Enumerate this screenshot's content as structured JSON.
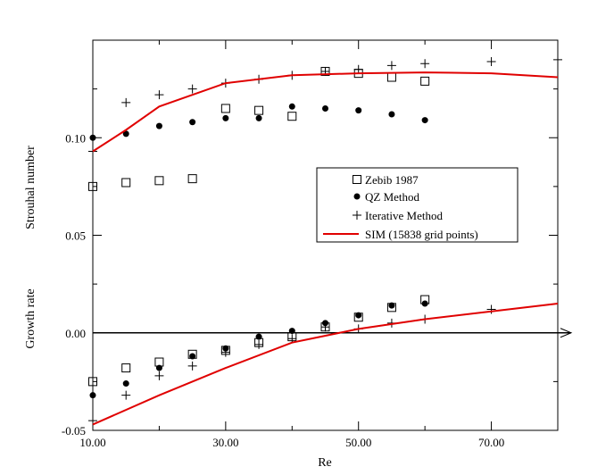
{
  "chart_data": {
    "type": "scatter",
    "xlabel": "Re",
    "ylabel_upper": "Strouhal number",
    "ylabel_lower": "Growth rate",
    "xlim": [
      10,
      80
    ],
    "ylim": [
      -0.05,
      0.15
    ],
    "x_ticks": [
      {
        "value": 10,
        "label": "10.00"
      },
      {
        "value": 30,
        "label": "30.00"
      },
      {
        "value": 50,
        "label": "50.00"
      },
      {
        "value": 70,
        "label": "70.00"
      }
    ],
    "y_ticks": [
      {
        "value": -0.05,
        "label": "-0.05"
      },
      {
        "value": 0.0,
        "label": "0.00"
      },
      {
        "value": 0.05,
        "label": "0.05"
      },
      {
        "value": 0.1,
        "label": "0.10"
      }
    ],
    "legend_position": "center-right",
    "zero_line": true,
    "series": [
      {
        "name": "Zebib 1987",
        "marker": "open-square",
        "color": "#000000",
        "strouhal": {
          "x": [
            10,
            15,
            20,
            25,
            30,
            35,
            40,
            45,
            50,
            55,
            60
          ],
          "y": [
            0.075,
            0.077,
            0.078,
            0.079,
            0.115,
            0.114,
            0.111,
            0.134,
            0.133,
            0.131,
            0.129
          ]
        },
        "growth": {
          "x": [
            10,
            15,
            20,
            25,
            30,
            35,
            40,
            45,
            50,
            55,
            60
          ],
          "y": [
            -0.025,
            -0.018,
            -0.015,
            -0.011,
            -0.009,
            -0.005,
            -0.002,
            0.003,
            0.008,
            0.013,
            0.017
          ]
        }
      },
      {
        "name": "QZ  Method",
        "marker": "filled-circle",
        "color": "#000000",
        "strouhal": {
          "x": [
            10,
            15,
            20,
            25,
            30,
            35,
            40,
            45,
            50,
            55,
            60
          ],
          "y": [
            0.1,
            0.102,
            0.106,
            0.108,
            0.11,
            0.11,
            0.116,
            0.115,
            0.114,
            0.112,
            0.109
          ]
        },
        "growth": {
          "x": [
            10,
            15,
            20,
            25,
            30,
            35,
            40,
            45,
            50,
            55,
            60
          ],
          "y": [
            -0.032,
            -0.026,
            -0.018,
            -0.012,
            -0.008,
            -0.002,
            0.001,
            0.005,
            0.009,
            0.014,
            0.015
          ]
        }
      },
      {
        "name": "Iterative Method",
        "marker": "plus",
        "color": "#000000",
        "strouhal": {
          "x": [
            10,
            15,
            20,
            25,
            30,
            35,
            40,
            45,
            50,
            55,
            60,
            70,
            80
          ],
          "y": [
            0.093,
            0.118,
            0.122,
            0.125,
            0.128,
            0.13,
            0.132,
            0.134,
            0.135,
            0.137,
            0.138,
            0.139,
            0.14
          ]
        },
        "growth": {
          "x": [
            10,
            15,
            20,
            25,
            30,
            35,
            40,
            45,
            50,
            55,
            60,
            70
          ],
          "y": [
            -0.045,
            -0.032,
            -0.022,
            -0.017,
            -0.01,
            -0.006,
            -0.003,
            0.003,
            0.002,
            0.005,
            0.007,
            0.012
          ]
        }
      },
      {
        "name": "SIM (15838 grid points)",
        "marker": "line",
        "color": "#e00000",
        "strouhal": {
          "x": [
            10,
            15,
            20,
            30,
            40,
            50,
            60,
            70,
            80
          ],
          "y": [
            0.093,
            0.104,
            0.116,
            0.128,
            0.132,
            0.133,
            0.1335,
            0.133,
            0.131
          ]
        },
        "growth": {
          "x": [
            10,
            20,
            30,
            40,
            50,
            60,
            70,
            80
          ],
          "y": [
            -0.047,
            -0.032,
            -0.018,
            -0.005,
            0.002,
            0.007,
            0.011,
            0.015
          ]
        }
      }
    ]
  }
}
